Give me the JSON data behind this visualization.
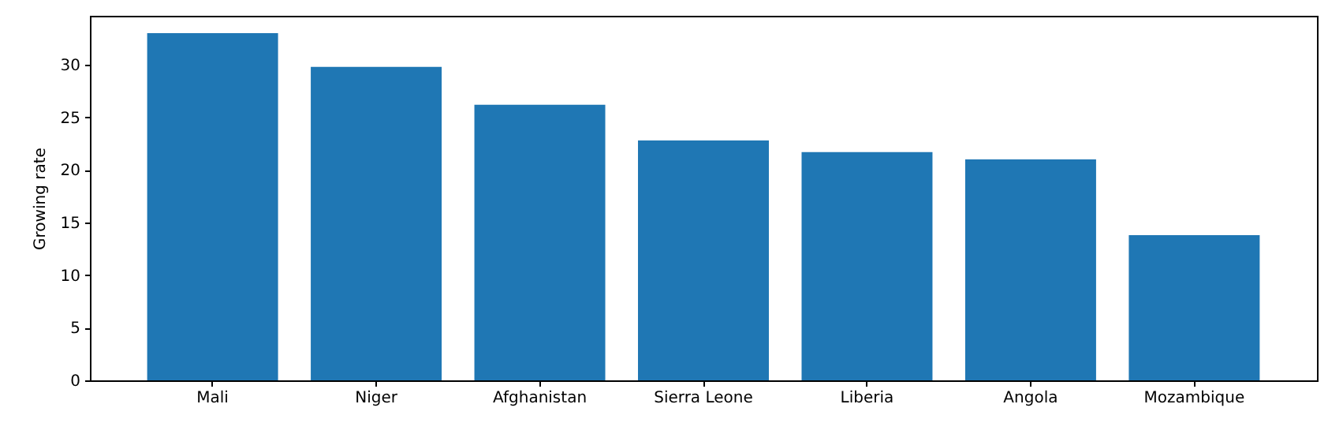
{
  "chart_data": {
    "type": "bar",
    "ylabel": "Growing rate",
    "categories": [
      "Mali",
      "Niger",
      "Afghanistan",
      "Sierra Leone",
      "Liberia",
      "Angola",
      "Mozambique"
    ],
    "values": [
      33.0,
      29.8,
      26.2,
      22.8,
      21.7,
      21.0,
      13.8
    ],
    "color": "#1f77b4",
    "ylim": [
      0,
      34.65
    ],
    "yticks": [
      0,
      5,
      10,
      15,
      20,
      25,
      30
    ],
    "grid": false
  }
}
